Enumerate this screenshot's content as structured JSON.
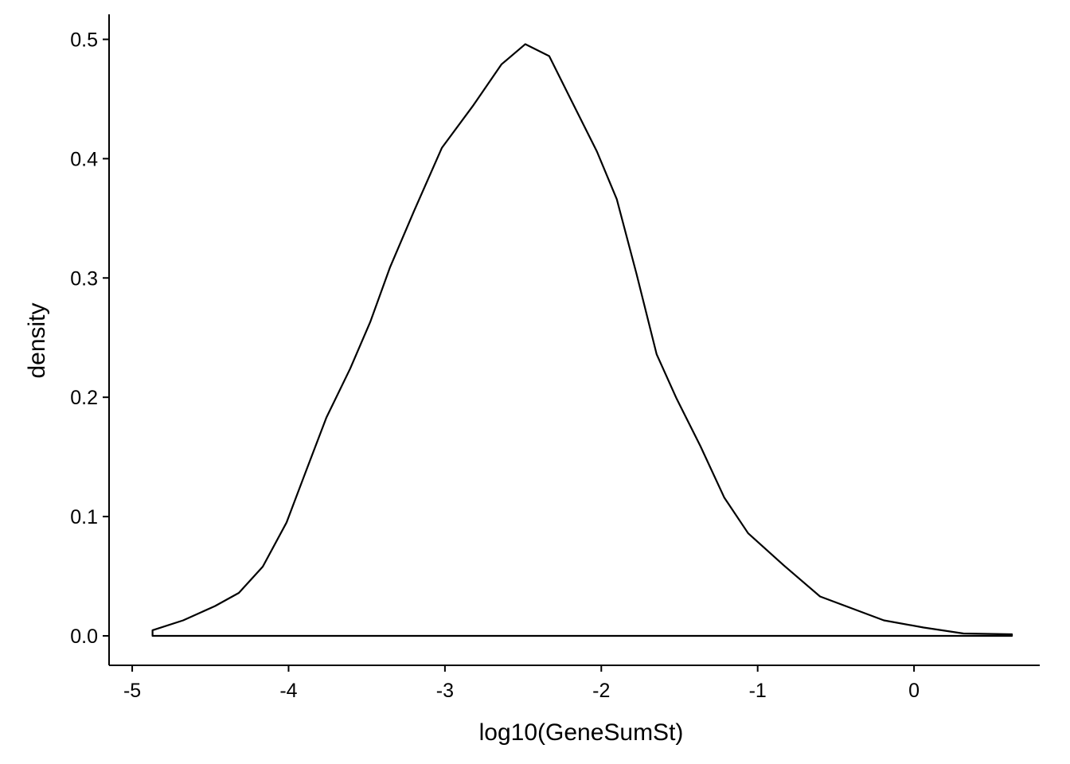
{
  "chart_data": {
    "type": "area",
    "x_label": "log10(GeneSumSt)",
    "y_label": "density",
    "x": [
      -4.87,
      -4.674,
      -4.47,
      -4.318,
      -4.165,
      -4.013,
      -3.886,
      -3.758,
      -3.606,
      -3.478,
      -3.351,
      -3.198,
      -3.02,
      -2.817,
      -2.639,
      -2.486,
      -2.333,
      -2.181,
      -2.028,
      -1.901,
      -1.774,
      -1.646,
      -1.519,
      -1.366,
      -1.214,
      -1.061,
      -0.832,
      -0.601,
      -0.397,
      -0.193,
      0.061,
      0.316,
      0.626
    ],
    "y": [
      0.0047,
      0.013,
      0.025,
      0.036,
      0.058,
      0.095,
      0.139,
      0.183,
      0.224,
      0.263,
      0.309,
      0.356,
      0.409,
      0.445,
      0.479,
      0.496,
      0.486,
      0.446,
      0.406,
      0.366,
      0.303,
      0.236,
      0.199,
      0.159,
      0.116,
      0.086,
      0.059,
      0.033,
      0.023,
      0.013,
      0.007,
      0.002,
      0.0013
    ],
    "color": "#000000",
    "fill": "#ffffff",
    "xlim": [
      -5.148,
      0.804
    ],
    "ylim": [
      -0.0247,
      0.521
    ],
    "xticks": [
      -5,
      -4,
      -3,
      -2,
      -1,
      0
    ],
    "yticks": [
      {
        "value": 0,
        "label": "0.0"
      },
      0.1,
      0.2,
      0.3,
      0.4,
      0.5
    ],
    "grid": false
  }
}
